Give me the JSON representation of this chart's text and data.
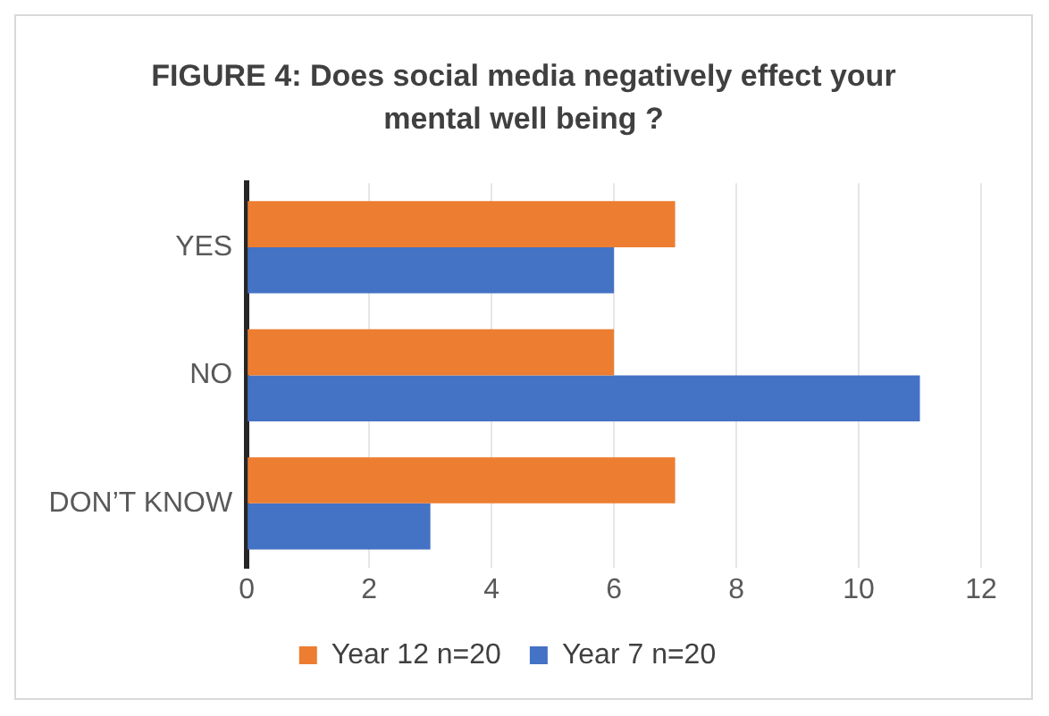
{
  "chart_data": {
    "type": "bar",
    "orientation": "horizontal",
    "title": "FIGURE 4: Does social media negatively effect your mental well being ?",
    "categories": [
      "YES",
      "NO",
      "DON’T KNOW"
    ],
    "series": [
      {
        "name": "Year 12 n=20",
        "color": "#ed7d31",
        "values": [
          7,
          6,
          7
        ]
      },
      {
        "name": "Year 7 n=20",
        "color": "#4472c4",
        "values": [
          6,
          11,
          3
        ]
      }
    ],
    "xlim": [
      0,
      12
    ],
    "xticks": [
      0,
      2,
      4,
      6,
      8,
      10,
      12
    ],
    "grid": "x",
    "legend": "bottom"
  }
}
